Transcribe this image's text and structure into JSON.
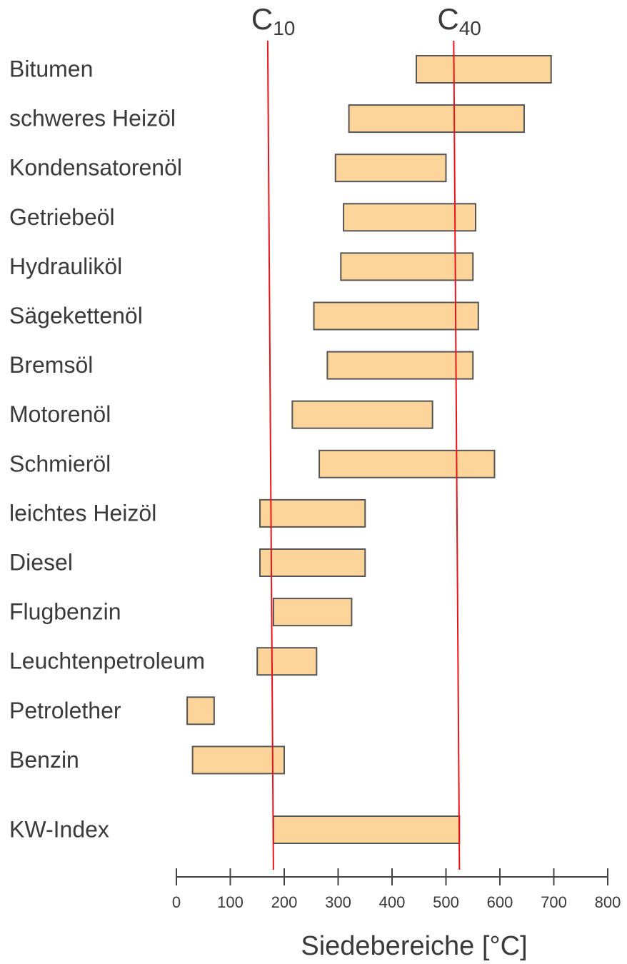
{
  "chart_data": {
    "type": "range-bar",
    "categories": [
      "Bitumen",
      "schweres Heizöl",
      "Kondensatorenöl",
      "Getriebeöl",
      "Hydrauliköl",
      "Sägekettenöl",
      "Bremsöl",
      "Motorenöl",
      "Schmieröl",
      "leichtes Heizöl",
      "Diesel",
      "Flugbenzin",
      "Leuchtenpetroleum",
      "Petrolether",
      "Benzin",
      "KW-Index"
    ],
    "low": [
      445,
      320,
      295,
      310,
      305,
      255,
      280,
      215,
      265,
      155,
      155,
      180,
      150,
      20,
      30,
      180
    ],
    "high": [
      695,
      645,
      500,
      555,
      550,
      560,
      550,
      475,
      590,
      350,
      350,
      325,
      260,
      70,
      200,
      525
    ],
    "color": "#fdd59a",
    "edge_color": "#555555",
    "xlabel": "Siedebereiche [°C]",
    "xlim": [
      0,
      800
    ],
    "xticks": [
      0,
      100,
      200,
      300,
      400,
      500,
      600,
      700,
      800
    ],
    "reference_lines": [
      {
        "label": "C",
        "subscript": "10",
        "value": 180,
        "color": "#e8141b"
      },
      {
        "label": "C",
        "subscript": "40",
        "value": 525,
        "color": "#e8141b"
      }
    ]
  }
}
